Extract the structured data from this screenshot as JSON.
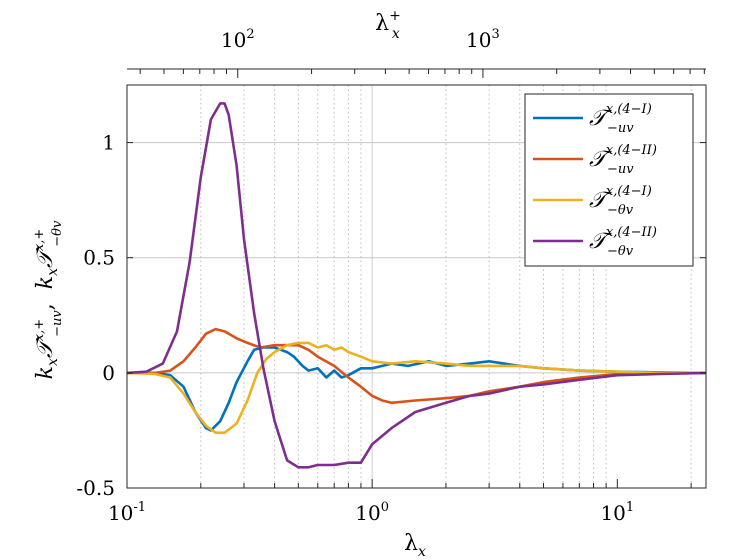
{
  "chart_data": {
    "type": "line",
    "xscale": "log",
    "xlim": [
      0.1,
      23
    ],
    "ylim": [
      -0.5,
      1.25
    ],
    "xlabel_main": "λ",
    "xlabel_sub": "x",
    "top_xlabel_main": "λ",
    "top_xlabel_sub": "x",
    "top_xlabel_sup": "+",
    "ylabel_text_1": "k",
    "ylabel_sub_1": "x",
    "ylabel_sym_1": "𝒯",
    "ylabel_sup_1": "x,+",
    "ylabel_subscript_1": "−uv",
    "ylabel_sep": ",",
    "ylabel_text_2": "k",
    "ylabel_sub_2": "x",
    "ylabel_sym_2": "𝒯",
    "ylabel_sup_2": "x,+",
    "ylabel_subscript_2": "−θv",
    "x_ticks": [
      {
        "value": 0.1,
        "base": "10",
        "exp": "-1"
      },
      {
        "value": 1,
        "base": "10",
        "exp": "0"
      },
      {
        "value": 10,
        "base": "10",
        "exp": "1"
      }
    ],
    "y_ticks": [
      {
        "value": -0.5,
        "label": "-0.5"
      },
      {
        "value": 0,
        "label": "0"
      },
      {
        "value": 0.5,
        "label": "0.5"
      },
      {
        "value": 1,
        "label": "1"
      }
    ],
    "top_ticks": [
      {
        "value": 0.283,
        "base": "10",
        "exp": "2"
      },
      {
        "value": 2.83,
        "base": "10",
        "exp": "3"
      }
    ],
    "grid_x": [
      0.2,
      0.3,
      0.4,
      0.5,
      0.6,
      0.7,
      0.8,
      0.9,
      1,
      2,
      3,
      4,
      5,
      6,
      7,
      8,
      9,
      20
    ],
    "grid_y": [
      0,
      0.5,
      1
    ],
    "series": [
      {
        "name": "T_-uv^(x,(4-I))",
        "legend_sym": "𝒯",
        "legend_sup": "x,(4−I)",
        "legend_sub": "−uv",
        "color": "#0072BD",
        "x": [
          0.1,
          0.13,
          0.15,
          0.17,
          0.19,
          0.21,
          0.22,
          0.24,
          0.26,
          0.28,
          0.31,
          0.33,
          0.36,
          0.4,
          0.45,
          0.48,
          0.52,
          0.55,
          0.6,
          0.65,
          0.7,
          0.75,
          0.8,
          0.9,
          1.0,
          1.2,
          1.4,
          1.7,
          2.0,
          2.5,
          3.0,
          4.0,
          5.0,
          7.0,
          10,
          15,
          23
        ],
        "y": [
          0,
          0,
          -0.01,
          -0.06,
          -0.17,
          -0.24,
          -0.25,
          -0.21,
          -0.13,
          -0.04,
          0.05,
          0.1,
          0.11,
          0.11,
          0.09,
          0.07,
          0.03,
          0.01,
          0.02,
          -0.02,
          0.01,
          -0.02,
          -0.01,
          0.02,
          0.02,
          0.04,
          0.03,
          0.05,
          0.03,
          0.04,
          0.05,
          0.03,
          0.02,
          0.01,
          0.005,
          0.002,
          0
        ]
      },
      {
        "name": "T_-uv^(x,(4-II))",
        "legend_sym": "𝒯",
        "legend_sup": "x,(4−II)",
        "legend_sub": "−uv",
        "color": "#D95319",
        "x": [
          0.1,
          0.13,
          0.15,
          0.17,
          0.19,
          0.21,
          0.23,
          0.25,
          0.28,
          0.31,
          0.35,
          0.4,
          0.45,
          0.5,
          0.55,
          0.6,
          0.7,
          0.8,
          0.9,
          1.0,
          1.1,
          1.2,
          1.5,
          2.0,
          2.5,
          3.0,
          4.0,
          5.0,
          7.0,
          10,
          15,
          23
        ],
        "y": [
          0,
          0,
          0.01,
          0.05,
          0.11,
          0.17,
          0.19,
          0.18,
          0.15,
          0.13,
          0.11,
          0.12,
          0.12,
          0.12,
          0.1,
          0.07,
          0.03,
          -0.02,
          -0.06,
          -0.1,
          -0.12,
          -0.13,
          -0.12,
          -0.11,
          -0.1,
          -0.08,
          -0.06,
          -0.04,
          -0.02,
          -0.005,
          0,
          0
        ]
      },
      {
        "name": "T_-θv^(x,(4-I))",
        "legend_sym": "𝒯",
        "legend_sup": "x,(4−I)",
        "legend_sub": "−θv",
        "color": "#EDB120",
        "x": [
          0.1,
          0.13,
          0.15,
          0.17,
          0.19,
          0.21,
          0.23,
          0.25,
          0.28,
          0.31,
          0.34,
          0.37,
          0.4,
          0.45,
          0.5,
          0.55,
          0.6,
          0.65,
          0.7,
          0.75,
          0.8,
          0.9,
          1.0,
          1.2,
          1.5,
          2.0,
          2.5,
          3.0,
          4.0,
          5.0,
          7.0,
          10,
          15,
          23
        ],
        "y": [
          0,
          -0.005,
          -0.02,
          -0.09,
          -0.17,
          -0.23,
          -0.26,
          -0.26,
          -0.22,
          -0.12,
          0.0,
          0.06,
          0.09,
          0.12,
          0.13,
          0.13,
          0.11,
          0.12,
          0.1,
          0.11,
          0.09,
          0.07,
          0.05,
          0.04,
          0.05,
          0.04,
          0.03,
          0.03,
          0.03,
          0.02,
          0.01,
          0.005,
          0,
          0
        ]
      },
      {
        "name": "T_-θv^(x,(4-II))",
        "legend_sym": "𝒯",
        "legend_sup": "x,(4−II)",
        "legend_sub": "−θv",
        "color": "#7E2F8E",
        "x": [
          0.1,
          0.12,
          0.14,
          0.16,
          0.18,
          0.2,
          0.22,
          0.24,
          0.25,
          0.26,
          0.28,
          0.3,
          0.33,
          0.36,
          0.4,
          0.45,
          0.5,
          0.55,
          0.6,
          0.7,
          0.8,
          0.9,
          1.0,
          1.2,
          1.5,
          2.0,
          2.5,
          3.0,
          4.0,
          5.0,
          7.0,
          10,
          15,
          23
        ],
        "y": [
          0,
          0.005,
          0.04,
          0.18,
          0.48,
          0.85,
          1.1,
          1.17,
          1.17,
          1.12,
          0.9,
          0.58,
          0.26,
          0.02,
          -0.21,
          -0.38,
          -0.41,
          -0.41,
          -0.4,
          -0.4,
          -0.39,
          -0.39,
          -0.31,
          -0.24,
          -0.17,
          -0.13,
          -0.1,
          -0.09,
          -0.06,
          -0.05,
          -0.03,
          -0.01,
          -0.005,
          0
        ]
      }
    ]
  }
}
